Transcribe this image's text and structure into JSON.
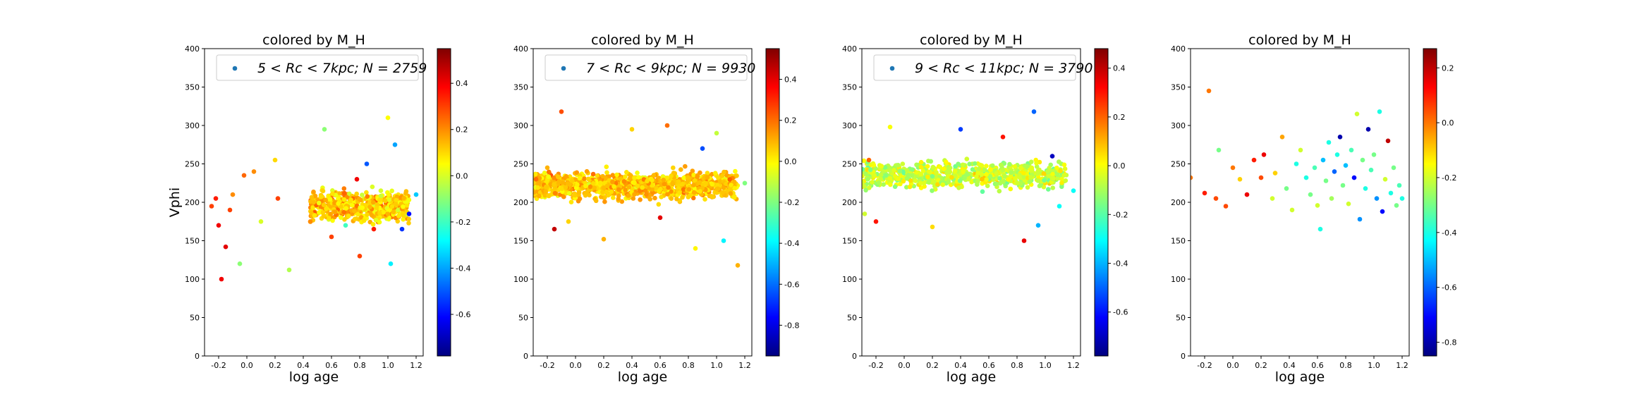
{
  "colors": {
    "jet": [
      "#00007f",
      "#0000ff",
      "#007fff",
      "#00ffff",
      "#7fff7f",
      "#ffff00",
      "#ff7f00",
      "#ff0000",
      "#7f0000"
    ],
    "legend_marker": "#1f77b4"
  },
  "chart_data": [
    {
      "type": "scatter",
      "title": "colored by M_H",
      "xlabel": "log age",
      "ylabel": "Vphi",
      "xlim": [
        -0.3,
        1.25
      ],
      "ylim": [
        0,
        400
      ],
      "xticks": [
        "-0.2",
        "0.0",
        "0.2",
        "0.4",
        "0.6",
        "0.8",
        "1.0",
        "1.2"
      ],
      "yticks": [
        "0",
        "50",
        "100",
        "150",
        "200",
        "250",
        "300",
        "350",
        "400"
      ],
      "legend": {
        "label": "5 < Rc < 7kpc;  N = 2759",
        "placement": "top-right"
      },
      "colorbar": {
        "min": -0.78,
        "max": 0.55,
        "ticks": [
          "0.4",
          "0.2",
          "0.0",
          "-0.2",
          "-0.4",
          "-0.6"
        ],
        "tick_values": [
          0.4,
          0.2,
          0.0,
          -0.2,
          -0.4,
          -0.6
        ]
      },
      "points": [
        {
          "x": -0.25,
          "y": 195,
          "c": 0.3
        },
        {
          "x": -0.22,
          "y": 205,
          "c": 0.35
        },
        {
          "x": -0.2,
          "y": 170,
          "c": 0.4
        },
        {
          "x": -0.18,
          "y": 100,
          "c": 0.4
        },
        {
          "x": -0.15,
          "y": 142,
          "c": 0.42
        },
        {
          "x": -0.12,
          "y": 190,
          "c": 0.3
        },
        {
          "x": -0.1,
          "y": 210,
          "c": 0.2
        },
        {
          "x": -0.05,
          "y": 120,
          "c": -0.1
        },
        {
          "x": -0.02,
          "y": 235,
          "c": 0.25
        },
        {
          "x": 0.05,
          "y": 240,
          "c": 0.2
        },
        {
          "x": 0.1,
          "y": 175,
          "c": 0.0
        },
        {
          "x": 0.2,
          "y": 255,
          "c": 0.1
        },
        {
          "x": 0.22,
          "y": 205,
          "c": 0.3
        },
        {
          "x": 0.3,
          "y": 112,
          "c": -0.05
        },
        {
          "x": 0.45,
          "y": 175,
          "c": 0.2
        },
        {
          "x": 0.55,
          "y": 295,
          "c": -0.1
        },
        {
          "x": 0.6,
          "y": 155,
          "c": 0.3
        },
        {
          "x": 0.7,
          "y": 170,
          "c": -0.2
        },
        {
          "x": 0.78,
          "y": 230,
          "c": 0.4
        },
        {
          "x": 0.8,
          "y": 130,
          "c": 0.3
        },
        {
          "x": 0.85,
          "y": 250,
          "c": -0.5
        },
        {
          "x": 0.9,
          "y": 165,
          "c": 0.35
        },
        {
          "x": 0.95,
          "y": 215,
          "c": 0.0
        },
        {
          "x": 1.0,
          "y": 310,
          "c": 0.05
        },
        {
          "x": 1.02,
          "y": 120,
          "c": -0.3
        },
        {
          "x": 1.05,
          "y": 275,
          "c": -0.4
        },
        {
          "x": 1.1,
          "y": 165,
          "c": -0.55
        },
        {
          "x": 1.15,
          "y": 185,
          "c": -0.6
        },
        {
          "x": 1.2,
          "y": 210,
          "c": -0.35
        }
      ]
    },
    {
      "type": "scatter",
      "title": "colored by M_H",
      "xlabel": "log age",
      "ylabel": "",
      "xlim": [
        -0.3,
        1.25
      ],
      "ylim": [
        0,
        400
      ],
      "xticks": [
        "-0.2",
        "0.0",
        "0.2",
        "0.4",
        "0.6",
        "0.8",
        "1.0",
        "1.2"
      ],
      "yticks": [
        "0",
        "50",
        "100",
        "150",
        "200",
        "250",
        "300",
        "350",
        "400"
      ],
      "legend": {
        "label": "7 < Rc < 9kpc;  N = 9930",
        "placement": "top-right"
      },
      "colorbar": {
        "min": -0.95,
        "max": 0.55,
        "ticks": [
          "0.4",
          "0.2",
          "0.0",
          "-0.2",
          "-0.4",
          "-0.6",
          "-0.8"
        ],
        "tick_values": [
          0.4,
          0.2,
          0.0,
          -0.2,
          -0.4,
          -0.6,
          -0.8
        ]
      },
      "points": [
        {
          "x": -0.28,
          "y": 230,
          "c": 0.2
        },
        {
          "x": -0.2,
          "y": 245,
          "c": 0.1
        },
        {
          "x": -0.15,
          "y": 165,
          "c": 0.45
        },
        {
          "x": -0.1,
          "y": 318,
          "c": 0.25
        },
        {
          "x": -0.05,
          "y": 175,
          "c": 0.05
        },
        {
          "x": 0.2,
          "y": 152,
          "c": 0.1
        },
        {
          "x": 0.4,
          "y": 295,
          "c": 0.05
        },
        {
          "x": 0.65,
          "y": 300,
          "c": 0.2
        },
        {
          "x": 0.85,
          "y": 140,
          "c": 0.0
        },
        {
          "x": 1.0,
          "y": 290,
          "c": -0.1
        },
        {
          "x": 1.05,
          "y": 150,
          "c": -0.4
        },
        {
          "x": 1.15,
          "y": 118,
          "c": 0.1
        },
        {
          "x": 1.2,
          "y": 225,
          "c": -0.2
        },
        {
          "x": 0.9,
          "y": 270,
          "c": -0.65
        },
        {
          "x": 0.6,
          "y": 180,
          "c": 0.4
        }
      ]
    },
    {
      "type": "scatter",
      "title": "colored by M_H",
      "xlabel": "log age",
      "ylabel": "",
      "xlim": [
        -0.3,
        1.25
      ],
      "ylim": [
        0,
        400
      ],
      "xticks": [
        "-0.2",
        "0.0",
        "0.2",
        "0.4",
        "0.6",
        "0.8",
        "1.0",
        "1.2"
      ],
      "yticks": [
        "0",
        "50",
        "100",
        "150",
        "200",
        "250",
        "300",
        "350",
        "400"
      ],
      "legend": {
        "label": "9 < Rc < 11kpc;  N = 3790",
        "placement": "top-right"
      },
      "colorbar": {
        "min": -0.78,
        "max": 0.48,
        "ticks": [
          "0.4",
          "0.2",
          "0.0",
          "-0.2",
          "-0.4",
          "-0.6"
        ],
        "tick_values": [
          0.4,
          0.2,
          0.0,
          -0.2,
          -0.4,
          -0.6
        ]
      },
      "points": [
        {
          "x": -0.28,
          "y": 185,
          "c": -0.05
        },
        {
          "x": -0.25,
          "y": 255,
          "c": 0.2
        },
        {
          "x": -0.2,
          "y": 175,
          "c": 0.3
        },
        {
          "x": -0.1,
          "y": 298,
          "c": 0.0
        },
        {
          "x": 0.2,
          "y": 168,
          "c": 0.05
        },
        {
          "x": 0.4,
          "y": 295,
          "c": -0.55
        },
        {
          "x": 0.7,
          "y": 285,
          "c": 0.3
        },
        {
          "x": 0.85,
          "y": 150,
          "c": 0.35
        },
        {
          "x": 0.92,
          "y": 318,
          "c": -0.5
        },
        {
          "x": 0.95,
          "y": 170,
          "c": -0.4
        },
        {
          "x": 1.05,
          "y": 260,
          "c": -0.7
        },
        {
          "x": 1.1,
          "y": 195,
          "c": -0.3
        },
        {
          "x": 1.2,
          "y": 215,
          "c": -0.3
        }
      ]
    },
    {
      "type": "scatter",
      "title": "colored by M_H",
      "xlabel": "log age",
      "ylabel": "",
      "xlim": [
        -0.3,
        1.25
      ],
      "ylim": [
        0,
        400
      ],
      "xticks": [
        "-0.2",
        "0.0",
        "0.2",
        "0.4",
        "0.6",
        "0.8",
        "1.0",
        "1.2"
      ],
      "yticks": [
        "0",
        "50",
        "100",
        "150",
        "200",
        "250",
        "300",
        "350",
        "400"
      ],
      "legend": null,
      "colorbar": {
        "min": -0.85,
        "max": 0.27,
        "ticks": [
          "0.2",
          "0.0",
          "-0.2",
          "-0.4",
          "-0.6",
          "-0.8"
        ],
        "tick_values": [
          0.2,
          0.0,
          -0.2,
          -0.4,
          -0.6,
          -0.8
        ]
      },
      "points": [
        {
          "x": -0.3,
          "y": 232,
          "c": 0.0
        },
        {
          "x": -0.2,
          "y": 212,
          "c": 0.1
        },
        {
          "x": -0.17,
          "y": 345,
          "c": 0.0
        },
        {
          "x": -0.12,
          "y": 205,
          "c": 0.05
        },
        {
          "x": -0.1,
          "y": 268,
          "c": -0.3
        },
        {
          "x": -0.05,
          "y": 195,
          "c": 0.05
        },
        {
          "x": 0.0,
          "y": 245,
          "c": 0.0
        },
        {
          "x": 0.05,
          "y": 230,
          "c": -0.1
        },
        {
          "x": 0.1,
          "y": 210,
          "c": 0.15
        },
        {
          "x": 0.15,
          "y": 255,
          "c": 0.1
        },
        {
          "x": 0.2,
          "y": 232,
          "c": 0.05
        },
        {
          "x": 0.22,
          "y": 262,
          "c": 0.15
        },
        {
          "x": 0.28,
          "y": 205,
          "c": -0.2
        },
        {
          "x": 0.3,
          "y": 238,
          "c": -0.1
        },
        {
          "x": 0.35,
          "y": 285,
          "c": -0.05
        },
        {
          "x": 0.38,
          "y": 218,
          "c": -0.3
        },
        {
          "x": 0.42,
          "y": 190,
          "c": -0.2
        },
        {
          "x": 0.45,
          "y": 250,
          "c": -0.4
        },
        {
          "x": 0.48,
          "y": 268,
          "c": -0.2
        },
        {
          "x": 0.52,
          "y": 232,
          "c": -0.4
        },
        {
          "x": 0.55,
          "y": 210,
          "c": -0.3
        },
        {
          "x": 0.58,
          "y": 245,
          "c": -0.35
        },
        {
          "x": 0.6,
          "y": 196,
          "c": -0.2
        },
        {
          "x": 0.62,
          "y": 165,
          "c": -0.4
        },
        {
          "x": 0.64,
          "y": 255,
          "c": -0.5
        },
        {
          "x": 0.66,
          "y": 228,
          "c": -0.3
        },
        {
          "x": 0.68,
          "y": 278,
          "c": -0.4
        },
        {
          "x": 0.7,
          "y": 205,
          "c": -0.25
        },
        {
          "x": 0.72,
          "y": 240,
          "c": -0.6
        },
        {
          "x": 0.74,
          "y": 262,
          "c": -0.4
        },
        {
          "x": 0.76,
          "y": 285,
          "c": -0.8
        },
        {
          "x": 0.78,
          "y": 222,
          "c": -0.3
        },
        {
          "x": 0.8,
          "y": 248,
          "c": -0.5
        },
        {
          "x": 0.82,
          "y": 198,
          "c": -0.2
        },
        {
          "x": 0.84,
          "y": 268,
          "c": -0.35
        },
        {
          "x": 0.86,
          "y": 232,
          "c": -0.7
        },
        {
          "x": 0.88,
          "y": 315,
          "c": -0.2
        },
        {
          "x": 0.9,
          "y": 178,
          "c": -0.55
        },
        {
          "x": 0.92,
          "y": 255,
          "c": -0.3
        },
        {
          "x": 0.94,
          "y": 218,
          "c": -0.4
        },
        {
          "x": 0.96,
          "y": 295,
          "c": -0.8
        },
        {
          "x": 0.98,
          "y": 242,
          "c": -0.35
        },
        {
          "x": 1.0,
          "y": 262,
          "c": -0.3
        },
        {
          "x": 1.02,
          "y": 205,
          "c": -0.55
        },
        {
          "x": 1.04,
          "y": 318,
          "c": -0.4
        },
        {
          "x": 1.06,
          "y": 188,
          "c": -0.7
        },
        {
          "x": 1.08,
          "y": 230,
          "c": -0.2
        },
        {
          "x": 1.1,
          "y": 280,
          "c": 0.2
        },
        {
          "x": 1.12,
          "y": 212,
          "c": -0.4
        },
        {
          "x": 1.14,
          "y": 245,
          "c": -0.3
        },
        {
          "x": 1.16,
          "y": 196,
          "c": -0.3
        },
        {
          "x": 1.18,
          "y": 222,
          "c": -0.35
        },
        {
          "x": 1.2,
          "y": 205,
          "c": -0.4
        }
      ]
    }
  ]
}
